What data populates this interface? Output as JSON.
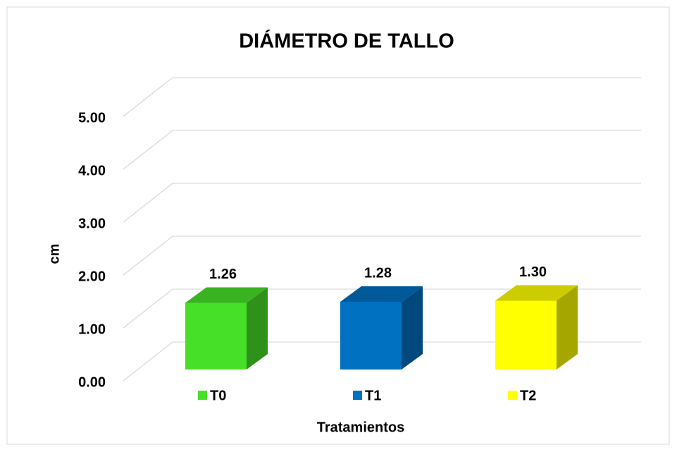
{
  "chart_data": {
    "type": "bar3d",
    "title": "DIÁMETRO DE TALLO",
    "x_label": "Tratamientos",
    "y_label": "cm",
    "categories": [
      null
    ],
    "series": [
      {
        "name": "T0",
        "color": "#47e028",
        "values": [
          1.26
        ],
        "value_labels": [
          "1.26"
        ]
      },
      {
        "name": "T1",
        "color": "#0070c0",
        "values": [
          1.28
        ],
        "value_labels": [
          "1.28"
        ]
      },
      {
        "name": "T2",
        "color": "#ffff00",
        "values": [
          1.3
        ],
        "value_labels": [
          "1.30"
        ]
      }
    ],
    "ylim": [
      0,
      5
    ],
    "yticks": [
      {
        "value": 0,
        "label": "0.00"
      },
      {
        "value": 1,
        "label": "1.00"
      },
      {
        "value": 2,
        "label": "2.00"
      },
      {
        "value": 3,
        "label": "3.00"
      },
      {
        "value": 4,
        "label": "4.00"
      },
      {
        "value": 5,
        "label": "5.00"
      }
    ],
    "grid": true,
    "legend": "bottom"
  }
}
